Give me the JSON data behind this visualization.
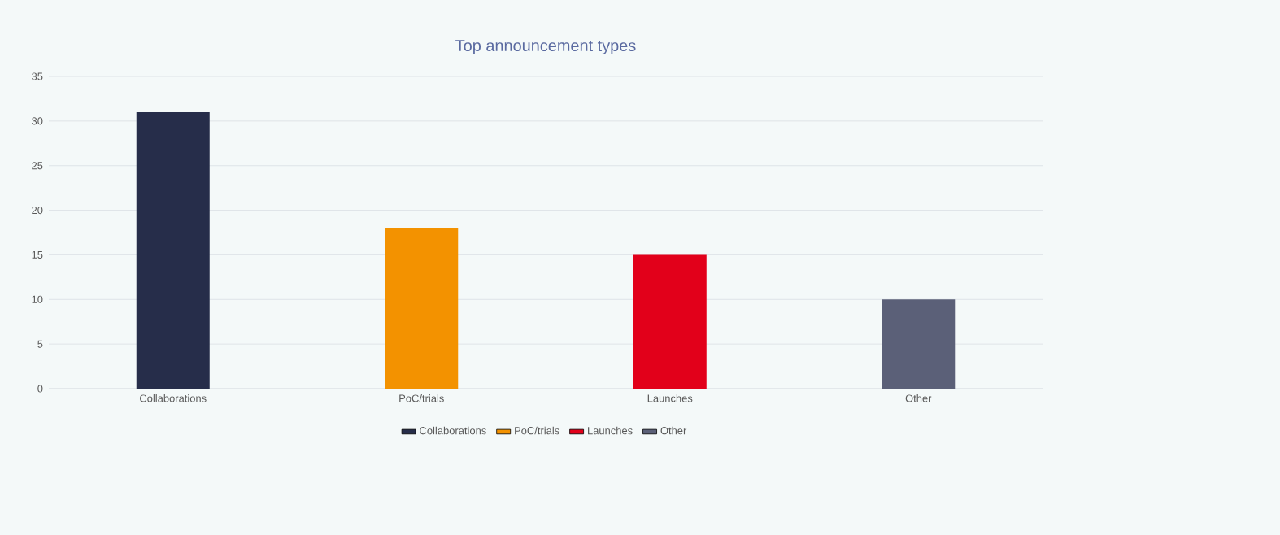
{
  "chart_data": {
    "type": "bar",
    "title": "Top announcement types",
    "categories": [
      "Collaborations",
      "PoC/trials",
      "Launches",
      "Other"
    ],
    "series": [
      {
        "name": "Collaborations",
        "color": "#262d4a",
        "values": [
          31,
          null,
          null,
          null
        ]
      },
      {
        "name": "PoC/trials",
        "color": "#f39200",
        "values": [
          null,
          18,
          null,
          null
        ]
      },
      {
        "name": "Launches",
        "color": "#e2001a",
        "values": [
          null,
          null,
          15,
          null
        ]
      },
      {
        "name": "Other",
        "color": "#5b6078",
        "values": [
          null,
          null,
          null,
          10
        ]
      }
    ],
    "ylim": [
      0,
      35
    ],
    "yticks": [
      0,
      5,
      10,
      15,
      20,
      25,
      30,
      35
    ],
    "grid": "y",
    "legend": "bottom"
  }
}
